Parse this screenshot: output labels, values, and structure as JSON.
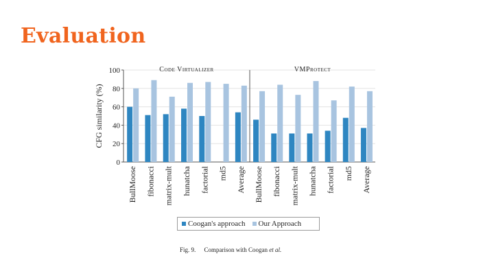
{
  "slide": {
    "title": "Evaluation"
  },
  "caption": {
    "label": "Fig. 9.",
    "text": "Comparison with Coogan",
    "et_al": "et al."
  },
  "colors": {
    "coogan": "#2e86c1",
    "ours": "#a8c4e0",
    "title": "#f0641e"
  },
  "chart_data": [
    {
      "type": "bar",
      "title": "Code Virtualizer",
      "ylabel": "CFG similarity (%)",
      "ylim": [
        0,
        100
      ],
      "yticks": [
        0,
        20,
        40,
        60,
        80,
        100
      ],
      "categories": [
        "BullMoose",
        "fibonacci",
        "matrix-mult",
        "hunatcha",
        "factorial",
        "md5",
        "Average"
      ],
      "series": [
        {
          "name": "Coogan's approach",
          "values": [
            60,
            51,
            52,
            58,
            50,
            0,
            54
          ]
        },
        {
          "name": "Our Approach",
          "values": [
            80,
            89,
            71,
            86,
            87,
            85,
            83
          ]
        }
      ]
    },
    {
      "type": "bar",
      "title": "VMProtect",
      "ylim": [
        0,
        100
      ],
      "categories": [
        "BullMoose",
        "fibonacci",
        "matrix-mult",
        "hunatcha",
        "factorial",
        "md5",
        "Average"
      ],
      "series": [
        {
          "name": "Coogan's approach",
          "values": [
            46,
            31,
            31,
            31,
            34,
            48,
            37
          ]
        },
        {
          "name": "Our Approach",
          "values": [
            77,
            84,
            73,
            88,
            67,
            82,
            77
          ]
        }
      ]
    }
  ]
}
